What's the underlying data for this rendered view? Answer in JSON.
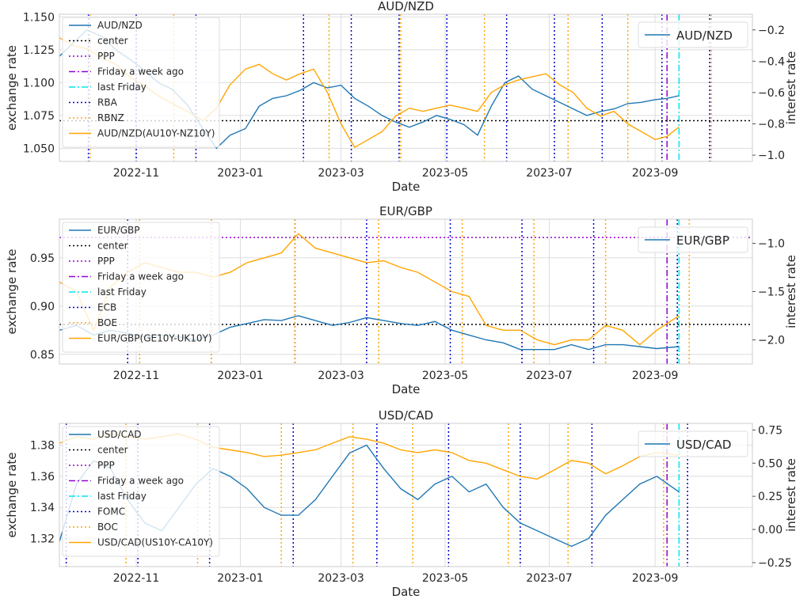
{
  "chart_data": [
    {
      "type": "line",
      "title": "AUD/NZD",
      "xlabel": "Date",
      "ylabel": "exchange rate",
      "ylabel_right": "interest rate",
      "x_range": [
        "2022-09-17",
        "2023-10-28"
      ],
      "x_ticks": [
        "2022-11-01",
        "2023-01-01",
        "2023-03-01",
        "2023-05-01",
        "2023-07-01",
        "2023-09-01"
      ],
      "x_tick_labels": [
        "2022-11",
        "2023-01",
        "2023-03",
        "2023-05",
        "2023-07",
        "2023-09"
      ],
      "ylim": [
        1.04,
        1.152
      ],
      "y_ticks": [
        1.05,
        1.075,
        1.1,
        1.125,
        1.15
      ],
      "y_tick_labels": [
        "1.050",
        "1.075",
        "1.100",
        "1.125",
        "1.150"
      ],
      "ylim_right": [
        -1.04,
        -0.1
      ],
      "y_ticks_right": [
        -1.0,
        -0.8,
        -0.6,
        -0.4,
        -0.2
      ],
      "y_tick_labels_right": [
        "−1.0",
        "−0.8",
        "−0.6",
        "−0.4",
        "−0.2"
      ],
      "grid": true,
      "legend_left": "upper-left",
      "legend_right": "upper-right",
      "center": 1.071,
      "series": [
        {
          "name": "AUD/NZD",
          "axis": "left",
          "color": "#1f77b4",
          "x": [
            "2022-09-17",
            "2022-09-25",
            "2022-10-03",
            "2022-10-12",
            "2022-10-20",
            "2022-10-28",
            "2022-11-05",
            "2022-11-14",
            "2022-11-22",
            "2022-12-01",
            "2022-12-10",
            "2022-12-18",
            "2022-12-26",
            "2023-01-04",
            "2023-01-12",
            "2023-01-20",
            "2023-01-28",
            "2023-02-05",
            "2023-02-13",
            "2023-02-21",
            "2023-03-01",
            "2023-03-09",
            "2023-03-17",
            "2023-03-25",
            "2023-04-02",
            "2023-04-10",
            "2023-04-18",
            "2023-04-26",
            "2023-05-04",
            "2023-05-12",
            "2023-05-20",
            "2023-05-28",
            "2023-06-05",
            "2023-06-13",
            "2023-06-21",
            "2023-06-29",
            "2023-07-07",
            "2023-07-15",
            "2023-07-23",
            "2023-07-31",
            "2023-08-08",
            "2023-08-16",
            "2023-08-24",
            "2023-09-01",
            "2023-09-08",
            "2023-09-15"
          ],
          "y": [
            1.12,
            1.13,
            1.14,
            1.135,
            1.125,
            1.118,
            1.11,
            1.1,
            1.095,
            1.083,
            1.065,
            1.05,
            1.06,
            1.065,
            1.082,
            1.088,
            1.09,
            1.094,
            1.1,
            1.096,
            1.098,
            1.088,
            1.082,
            1.075,
            1.07,
            1.066,
            1.07,
            1.075,
            1.072,
            1.068,
            1.06,
            1.082,
            1.1,
            1.105,
            1.095,
            1.09,
            1.085,
            1.08,
            1.075,
            1.078,
            1.08,
            1.084,
            1.085,
            1.087,
            1.088,
            1.09
          ]
        },
        {
          "name": "AUD/NZD(AU10Y-NZ10Y)",
          "axis": "right",
          "color": "#ffa500",
          "x": [
            "2022-09-17",
            "2022-09-25",
            "2022-10-03",
            "2022-10-12",
            "2022-10-20",
            "2022-10-28",
            "2022-11-05",
            "2022-11-14",
            "2022-11-22",
            "2022-12-01",
            "2022-12-10",
            "2022-12-18",
            "2022-12-26",
            "2023-01-04",
            "2023-01-12",
            "2023-01-20",
            "2023-01-28",
            "2023-02-05",
            "2023-02-13",
            "2023-02-21",
            "2023-03-01",
            "2023-03-09",
            "2023-03-17",
            "2023-03-25",
            "2023-04-02",
            "2023-04-10",
            "2023-04-18",
            "2023-04-26",
            "2023-05-04",
            "2023-05-12",
            "2023-05-20",
            "2023-05-28",
            "2023-06-05",
            "2023-06-13",
            "2023-06-21",
            "2023-06-29",
            "2023-07-07",
            "2023-07-15",
            "2023-07-23",
            "2023-07-31",
            "2023-08-08",
            "2023-08-16",
            "2023-08-24",
            "2023-09-01",
            "2023-09-08",
            "2023-09-15"
          ],
          "y": [
            -0.25,
            -0.3,
            -0.32,
            -0.38,
            -0.42,
            -0.5,
            -0.55,
            -0.62,
            -0.67,
            -0.72,
            -0.78,
            -0.7,
            -0.55,
            -0.45,
            -0.42,
            -0.48,
            -0.52,
            -0.48,
            -0.45,
            -0.6,
            -0.8,
            -0.95,
            -0.9,
            -0.85,
            -0.75,
            -0.7,
            -0.72,
            -0.7,
            -0.68,
            -0.7,
            -0.72,
            -0.6,
            -0.55,
            -0.52,
            -0.5,
            -0.48,
            -0.55,
            -0.6,
            -0.7,
            -0.75,
            -0.72,
            -0.8,
            -0.85,
            -0.9,
            -0.88,
            -0.82
          ]
        }
      ],
      "vlines": [
        {
          "name": "PPP",
          "style": "dotted",
          "color": "#9400d3",
          "dates": []
        },
        {
          "name": "Friday a week ago",
          "style": "dashdot",
          "color": "#9400d3",
          "dates": [
            "2023-09-08"
          ]
        },
        {
          "name": "last Friday",
          "style": "dashdot",
          "color": "#00e5ee",
          "dates": [
            "2023-09-15"
          ]
        },
        {
          "name": "RBA",
          "style": "dotted",
          "color": "#0000cd",
          "dates": [
            "2022-10-04",
            "2022-11-01",
            "2022-12-06",
            "2023-02-07",
            "2023-03-07",
            "2023-04-04",
            "2023-05-02",
            "2023-06-06",
            "2023-07-04",
            "2023-08-01",
            "2023-09-05",
            "2023-10-03"
          ]
        },
        {
          "name": "RBNZ",
          "style": "dotted",
          "color": "#ffa500",
          "dates": [
            "2022-10-05",
            "2022-11-23",
            "2023-02-22",
            "2023-04-05",
            "2023-05-24",
            "2023-07-12",
            "2023-08-16",
            "2023-10-04"
          ]
        }
      ],
      "legend": [
        "AUD/NZD",
        "center",
        "PPP",
        "Friday a week ago",
        "last Friday",
        "RBA",
        "RBNZ",
        "AUD/NZD(AU10Y-NZ10Y)"
      ],
      "legend_right_entries": [
        "AUD/NZD"
      ]
    },
    {
      "type": "line",
      "title": "EUR/GBP",
      "xlabel": "Date",
      "ylabel": "exchange rate",
      "ylabel_right": "interest rate",
      "x_range": [
        "2022-09-17",
        "2023-10-28"
      ],
      "x_ticks": [
        "2022-11-01",
        "2023-01-01",
        "2023-03-01",
        "2023-05-01",
        "2023-07-01",
        "2023-09-01"
      ],
      "x_tick_labels": [
        "2022-11",
        "2023-01",
        "2023-03",
        "2023-05",
        "2023-07",
        "2023-09"
      ],
      "ylim": [
        0.84,
        0.99
      ],
      "y_ticks": [
        0.85,
        0.9,
        0.95
      ],
      "y_tick_labels": [
        "0.85",
        "0.90",
        "0.95"
      ],
      "ylim_right": [
        -2.25,
        -0.75
      ],
      "y_ticks_right": [
        -2.0,
        -1.5,
        -1.0
      ],
      "y_tick_labels_right": [
        "−2.0",
        "−1.5",
        "−1.0"
      ],
      "grid": true,
      "legend_left": "upper-left",
      "legend_right": "upper-right",
      "center": 0.881,
      "ppp": 0.971,
      "series": [
        {
          "name": "EUR/GBP",
          "axis": "left",
          "color": "#1f77b4",
          "x": [
            "2022-09-17",
            "2022-09-27",
            "2022-10-07",
            "2022-10-17",
            "2022-10-27",
            "2022-11-06",
            "2022-11-16",
            "2022-11-26",
            "2022-12-06",
            "2022-12-16",
            "2022-12-26",
            "2023-01-05",
            "2023-01-15",
            "2023-01-25",
            "2023-02-04",
            "2023-02-14",
            "2023-02-24",
            "2023-03-06",
            "2023-03-16",
            "2023-03-26",
            "2023-04-05",
            "2023-04-15",
            "2023-04-25",
            "2023-05-05",
            "2023-05-15",
            "2023-05-25",
            "2023-06-04",
            "2023-06-14",
            "2023-06-24",
            "2023-07-04",
            "2023-07-14",
            "2023-07-24",
            "2023-08-03",
            "2023-08-13",
            "2023-08-23",
            "2023-09-02",
            "2023-09-15"
          ],
          "y": [
            0.875,
            0.88,
            0.87,
            0.875,
            0.872,
            0.868,
            0.87,
            0.868,
            0.865,
            0.87,
            0.878,
            0.882,
            0.886,
            0.885,
            0.89,
            0.885,
            0.88,
            0.883,
            0.888,
            0.885,
            0.882,
            0.88,
            0.884,
            0.875,
            0.87,
            0.865,
            0.862,
            0.855,
            0.855,
            0.855,
            0.86,
            0.855,
            0.86,
            0.86,
            0.858,
            0.856,
            0.858
          ]
        },
        {
          "name": "EUR/GBP(GE10Y-UK10Y)",
          "axis": "right",
          "color": "#ffa500",
          "x": [
            "2022-09-17",
            "2022-09-27",
            "2022-10-07",
            "2022-10-17",
            "2022-10-27",
            "2022-11-06",
            "2022-11-16",
            "2022-11-26",
            "2022-12-06",
            "2022-12-16",
            "2022-12-26",
            "2023-01-05",
            "2023-01-15",
            "2023-01-25",
            "2023-02-04",
            "2023-02-14",
            "2023-02-24",
            "2023-03-06",
            "2023-03-16",
            "2023-03-26",
            "2023-04-05",
            "2023-04-15",
            "2023-04-25",
            "2023-05-05",
            "2023-05-15",
            "2023-05-25",
            "2023-06-04",
            "2023-06-14",
            "2023-06-24",
            "2023-07-04",
            "2023-07-14",
            "2023-07-24",
            "2023-08-03",
            "2023-08-13",
            "2023-08-23",
            "2023-09-02",
            "2023-09-15"
          ],
          "y": [
            -1.4,
            -1.5,
            -1.9,
            -1.45,
            -1.3,
            -1.2,
            -1.25,
            -1.3,
            -1.3,
            -1.35,
            -1.3,
            -1.2,
            -1.15,
            -1.1,
            -0.9,
            -1.05,
            -1.1,
            -1.15,
            -1.2,
            -1.18,
            -1.25,
            -1.3,
            -1.4,
            -1.5,
            -1.55,
            -1.85,
            -1.9,
            -1.9,
            -2.0,
            -2.05,
            -2.0,
            -2.0,
            -1.85,
            -1.9,
            -2.05,
            -1.9,
            -1.75
          ]
        }
      ],
      "vlines": [
        {
          "name": "PPP",
          "style": "dotted",
          "color": "#9400d3",
          "dates": []
        },
        {
          "name": "Friday a week ago",
          "style": "dashdot",
          "color": "#9400d3",
          "dates": [
            "2023-09-08"
          ]
        },
        {
          "name": "last Friday",
          "style": "dashdot",
          "color": "#00e5ee",
          "dates": [
            "2023-09-15"
          ]
        },
        {
          "name": "ECB",
          "style": "dotted",
          "color": "#0000cd",
          "dates": [
            "2022-10-27",
            "2022-12-15",
            "2023-02-02",
            "2023-03-16",
            "2023-05-04",
            "2023-06-15",
            "2023-07-27",
            "2023-09-14"
          ]
        },
        {
          "name": "BOE",
          "style": "dotted",
          "color": "#ffa500",
          "dates": [
            "2022-11-03",
            "2022-12-15",
            "2023-02-02",
            "2023-03-23",
            "2023-05-11",
            "2023-06-22",
            "2023-08-03",
            "2023-09-21"
          ]
        }
      ],
      "legend": [
        "EUR/GBP",
        "center",
        "PPP",
        "Friday a week ago",
        "last Friday",
        "ECB",
        "BOE",
        "EUR/GBP(GE10Y-UK10Y)"
      ],
      "legend_right_entries": [
        "EUR/GBP"
      ]
    },
    {
      "type": "line",
      "title": "USD/CAD",
      "xlabel": "Date",
      "ylabel": "exchange rate",
      "ylabel_right": "interest rate",
      "x_range": [
        "2022-09-17",
        "2023-10-28"
      ],
      "x_ticks": [
        "2022-11-01",
        "2023-01-01",
        "2023-03-01",
        "2023-05-01",
        "2023-07-01",
        "2023-09-01"
      ],
      "x_tick_labels": [
        "2022-11",
        "2023-01",
        "2023-03",
        "2023-05",
        "2023-07",
        "2023-09"
      ],
      "ylim": [
        1.302,
        1.394
      ],
      "y_ticks": [
        1.32,
        1.34,
        1.36,
        1.38
      ],
      "y_tick_labels": [
        "1.32",
        "1.34",
        "1.36",
        "1.38"
      ],
      "ylim_right": [
        -0.28,
        0.8
      ],
      "y_ticks_right": [
        -0.25,
        0.0,
        0.25,
        0.5,
        0.75
      ],
      "y_tick_labels_right": [
        "−0.25",
        "0.00",
        "0.25",
        "0.50",
        "0.75"
      ],
      "grid": true,
      "legend_left": "upper-left",
      "legend_right": "upper-right",
      "series": [
        {
          "name": "USD/CAD",
          "axis": "left",
          "color": "#1f77b4",
          "x": [
            "2022-09-17",
            "2022-09-27",
            "2022-10-07",
            "2022-10-17",
            "2022-10-27",
            "2022-11-06",
            "2022-11-16",
            "2022-11-26",
            "2022-12-06",
            "2022-12-16",
            "2022-12-26",
            "2023-01-05",
            "2023-01-15",
            "2023-01-25",
            "2023-02-04",
            "2023-02-14",
            "2023-02-24",
            "2023-03-06",
            "2023-03-16",
            "2023-03-26",
            "2023-04-05",
            "2023-04-15",
            "2023-04-25",
            "2023-05-05",
            "2023-05-15",
            "2023-05-25",
            "2023-06-04",
            "2023-06-14",
            "2023-06-24",
            "2023-07-04",
            "2023-07-14",
            "2023-07-24",
            "2023-08-03",
            "2023-08-13",
            "2023-08-23",
            "2023-09-02",
            "2023-09-15"
          ],
          "y": [
            1.318,
            1.355,
            1.37,
            1.365,
            1.345,
            1.33,
            1.325,
            1.34,
            1.355,
            1.365,
            1.36,
            1.352,
            1.34,
            1.335,
            1.335,
            1.345,
            1.36,
            1.375,
            1.38,
            1.365,
            1.352,
            1.345,
            1.355,
            1.36,
            1.35,
            1.355,
            1.34,
            1.33,
            1.325,
            1.32,
            1.315,
            1.32,
            1.335,
            1.345,
            1.355,
            1.36,
            1.35
          ]
        },
        {
          "name": "USD/CAD(US10Y-CA10Y)",
          "axis": "right",
          "color": "#ffa500",
          "x": [
            "2022-09-17",
            "2022-09-27",
            "2022-10-07",
            "2022-10-17",
            "2022-10-27",
            "2022-11-06",
            "2022-11-16",
            "2022-11-26",
            "2022-12-06",
            "2022-12-16",
            "2022-12-26",
            "2023-01-05",
            "2023-01-15",
            "2023-01-25",
            "2023-02-04",
            "2023-02-14",
            "2023-02-24",
            "2023-03-06",
            "2023-03-16",
            "2023-03-26",
            "2023-04-05",
            "2023-04-15",
            "2023-04-25",
            "2023-05-05",
            "2023-05-15",
            "2023-05-25",
            "2023-06-04",
            "2023-06-14",
            "2023-06-24",
            "2023-07-04",
            "2023-07-14",
            "2023-07-24",
            "2023-08-03",
            "2023-08-13",
            "2023-08-23",
            "2023-09-02",
            "2023-09-15"
          ],
          "y": [
            0.65,
            0.7,
            0.68,
            0.72,
            0.7,
            0.68,
            0.7,
            0.72,
            0.68,
            0.62,
            0.6,
            0.58,
            0.55,
            0.56,
            0.58,
            0.6,
            0.65,
            0.7,
            0.68,
            0.65,
            0.6,
            0.58,
            0.6,
            0.58,
            0.52,
            0.5,
            0.45,
            0.4,
            0.38,
            0.45,
            0.52,
            0.5,
            0.42,
            0.48,
            0.55,
            0.58,
            0.56
          ]
        }
      ],
      "vlines": [
        {
          "name": "PPP",
          "style": "dotted",
          "color": "#9400d3",
          "dates": []
        },
        {
          "name": "Friday a week ago",
          "style": "dashdot",
          "color": "#9400d3",
          "dates": [
            "2023-09-08"
          ]
        },
        {
          "name": "last Friday",
          "style": "dashdot",
          "color": "#00e5ee",
          "dates": [
            "2023-09-15"
          ]
        },
        {
          "name": "FOMC",
          "style": "dotted",
          "color": "#0000cd",
          "dates": [
            "2022-09-21",
            "2022-11-02",
            "2022-12-14",
            "2023-02-01",
            "2023-03-22",
            "2023-05-03",
            "2023-06-14",
            "2023-07-26",
            "2023-09-20"
          ]
        },
        {
          "name": "BOC",
          "style": "dotted",
          "color": "#ffa500",
          "dates": [
            "2022-10-26",
            "2022-12-07",
            "2023-01-25",
            "2023-03-08",
            "2023-04-12",
            "2023-06-07",
            "2023-07-12",
            "2023-09-06"
          ]
        }
      ],
      "legend": [
        "USD/CAD",
        "center",
        "PPP",
        "Friday a week ago",
        "last Friday",
        "FOMC",
        "BOC",
        "USD/CAD(US10Y-CA10Y)"
      ],
      "legend_right_entries": [
        "USD/CAD"
      ]
    }
  ]
}
